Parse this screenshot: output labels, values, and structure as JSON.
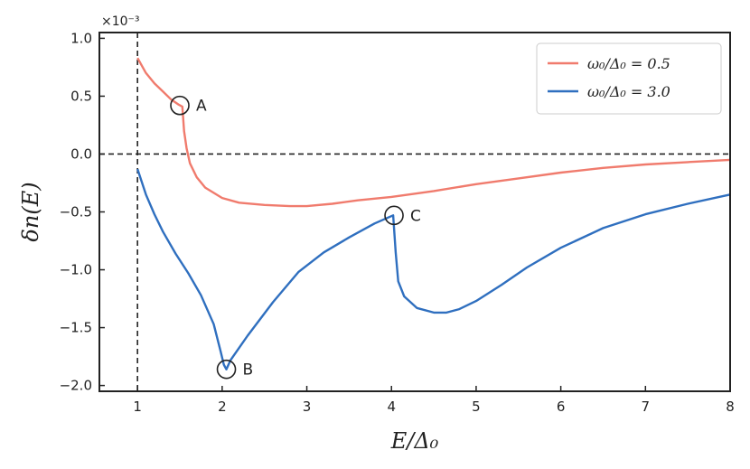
{
  "chart_data": {
    "type": "line",
    "xlabel": "E/Δ₀",
    "ylabel": "δn(E)",
    "y_exponent_label": "×10⁻³",
    "xlim": [
      0.55,
      8.0
    ],
    "ylim": [
      -2.05,
      1.05
    ],
    "x_ticks": [
      1,
      2,
      3,
      4,
      5,
      6,
      7,
      8
    ],
    "y_ticks": [
      1.0,
      0.5,
      0.0,
      -0.5,
      -1.0,
      -1.5,
      -2.0
    ],
    "y_tick_labels": [
      "1.0",
      "0.5",
      "0.0",
      "−0.5",
      "−1.0",
      "−1.5",
      "−2.0"
    ],
    "reference_lines": {
      "vertical_x": 1,
      "horizontal_y": 0
    },
    "legend_position": "top-right",
    "series": [
      {
        "name": "ω₀/Δ₀ = 0.5",
        "color": "#f07b6d",
        "x": [
          1.0,
          1.1,
          1.2,
          1.3,
          1.4,
          1.48,
          1.53,
          1.55,
          1.58,
          1.62,
          1.7,
          1.8,
          2.0,
          2.2,
          2.5,
          2.8,
          3.0,
          3.3,
          3.6,
          4.0,
          4.5,
          5.0,
          5.5,
          6.0,
          6.5,
          7.0,
          7.5,
          8.0
        ],
        "y": [
          0.83,
          0.7,
          0.61,
          0.54,
          0.47,
          0.43,
          0.41,
          0.2,
          0.05,
          -0.08,
          -0.2,
          -0.29,
          -0.38,
          -0.42,
          -0.44,
          -0.45,
          -0.45,
          -0.43,
          -0.4,
          -0.37,
          -0.32,
          -0.26,
          -0.21,
          -0.16,
          -0.12,
          -0.09,
          -0.07,
          -0.05
        ]
      },
      {
        "name": "ω₀/Δ₀ = 3.0",
        "color": "#2f6fbf",
        "x": [
          1.0,
          1.1,
          1.2,
          1.3,
          1.45,
          1.6,
          1.75,
          1.9,
          1.98,
          2.02,
          2.05,
          2.1,
          2.3,
          2.6,
          2.9,
          3.2,
          3.5,
          3.8,
          4.02,
          4.05,
          4.08,
          4.15,
          4.3,
          4.5,
          4.65,
          4.8,
          5.0,
          5.3,
          5.6,
          6.0,
          6.5,
          7.0,
          7.5,
          8.0
        ],
        "y": [
          -0.13,
          -0.35,
          -0.52,
          -0.67,
          -0.86,
          -1.03,
          -1.22,
          -1.47,
          -1.7,
          -1.82,
          -1.86,
          -1.78,
          -1.57,
          -1.28,
          -1.02,
          -0.85,
          -0.72,
          -0.6,
          -0.53,
          -0.85,
          -1.1,
          -1.23,
          -1.33,
          -1.37,
          -1.37,
          -1.34,
          -1.27,
          -1.13,
          -0.98,
          -0.81,
          -0.64,
          -0.52,
          -0.43,
          -0.35
        ]
      }
    ],
    "annotations": [
      {
        "label": "A",
        "x": 1.5,
        "y": 0.42
      },
      {
        "label": "B",
        "x": 2.05,
        "y": -1.86
      },
      {
        "label": "C",
        "x": 4.03,
        "y": -0.53
      }
    ]
  }
}
